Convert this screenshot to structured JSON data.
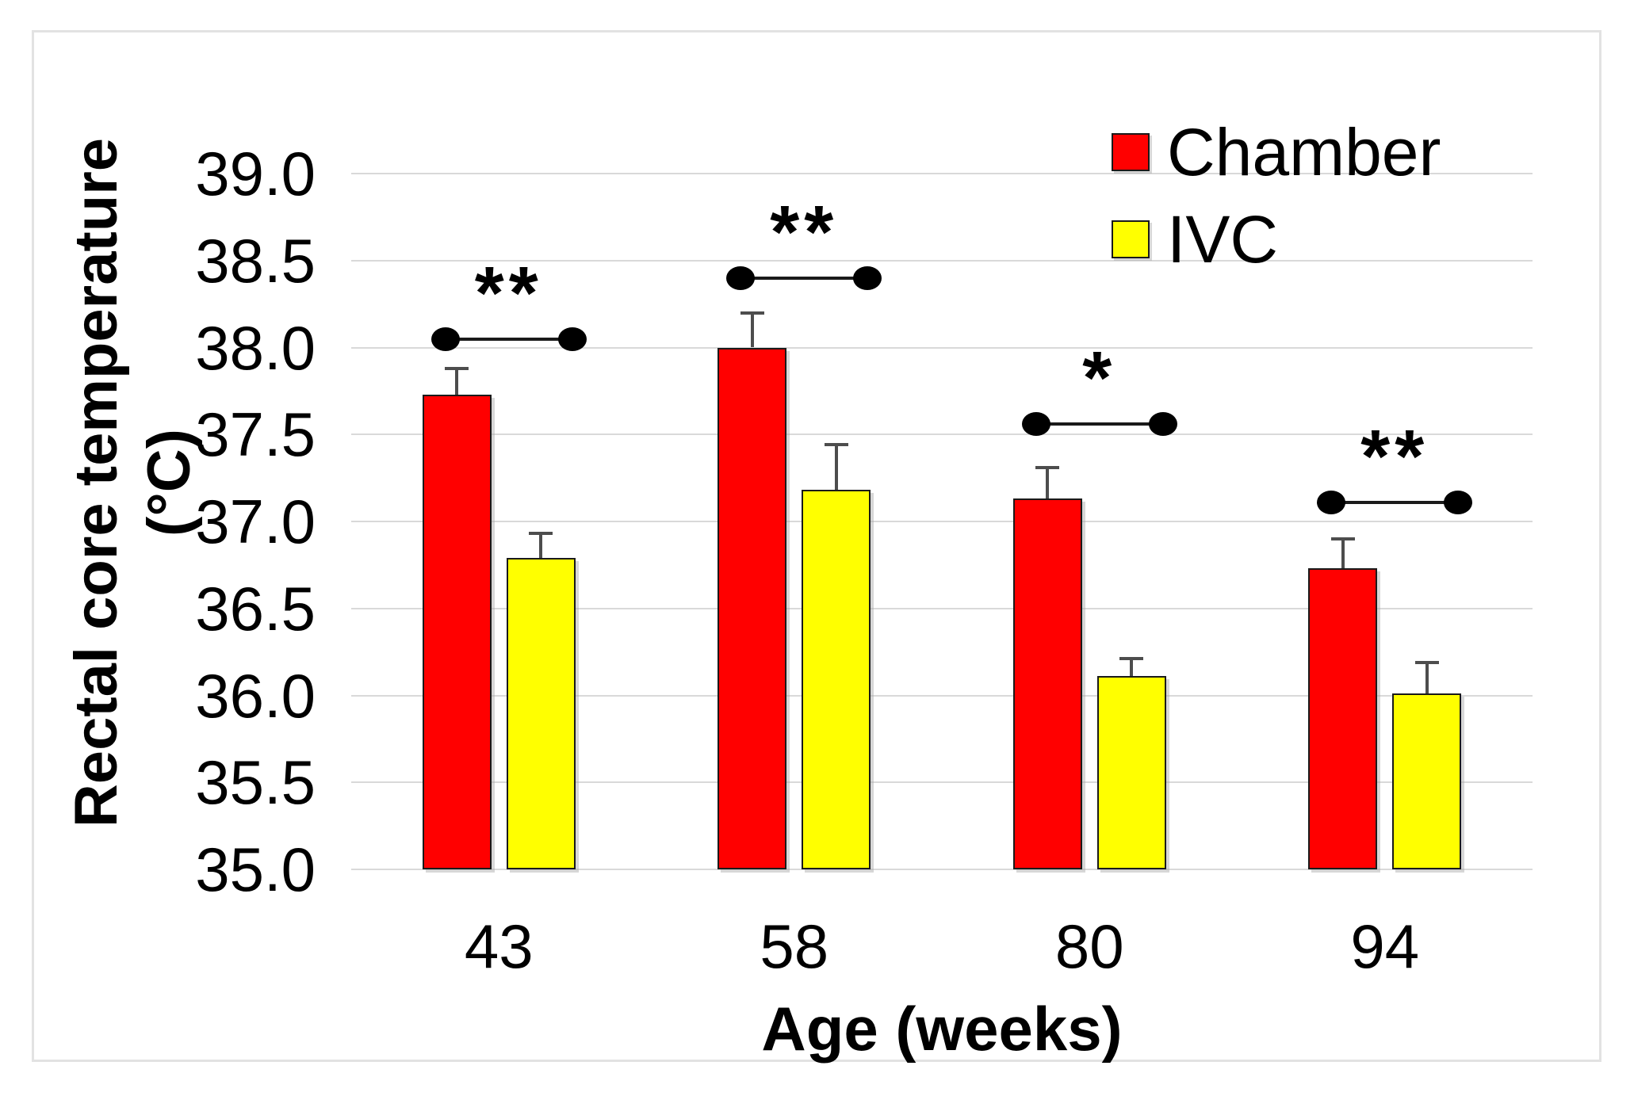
{
  "chart_data": {
    "type": "bar",
    "categories": [
      "43",
      "58",
      "80",
      "94"
    ],
    "series": [
      {
        "name": "Chamber",
        "color": "#ff0000",
        "values": [
          37.73,
          38.0,
          37.13,
          36.73
        ],
        "errors": [
          0.15,
          0.2,
          0.18,
          0.17
        ]
      },
      {
        "name": "IVC",
        "color": "#ffff00",
        "values": [
          36.79,
          37.18,
          36.11,
          36.01
        ],
        "errors": [
          0.14,
          0.26,
          0.1,
          0.18
        ]
      }
    ],
    "significance": [
      {
        "category": "43",
        "label": "**",
        "y": 38.05
      },
      {
        "category": "58",
        "label": "**",
        "y": 38.4
      },
      {
        "category": "80",
        "label": "*",
        "y": 37.56
      },
      {
        "category": "94",
        "label": "**",
        "y": 37.11
      }
    ],
    "title": "",
    "xlabel": "Age (weeks)",
    "ylabel": "Rectal core temperature (°C)",
    "ylim": [
      35.0,
      39.0
    ],
    "ytick_step": 0.5,
    "yticks": [
      "39.0",
      "38.5",
      "38.0",
      "37.5",
      "37.0",
      "36.5",
      "36.0",
      "35.5",
      "35.0"
    ],
    "grid": true,
    "legend_position": "top-right",
    "error_bars": "upper-only"
  },
  "colors": {
    "grid": "#d9d9d9",
    "frame": "#e2e2e2",
    "error_bar": "#4d4d4d",
    "connector": "#1a1a1a",
    "text": "#000000",
    "background": "#ffffff"
  }
}
